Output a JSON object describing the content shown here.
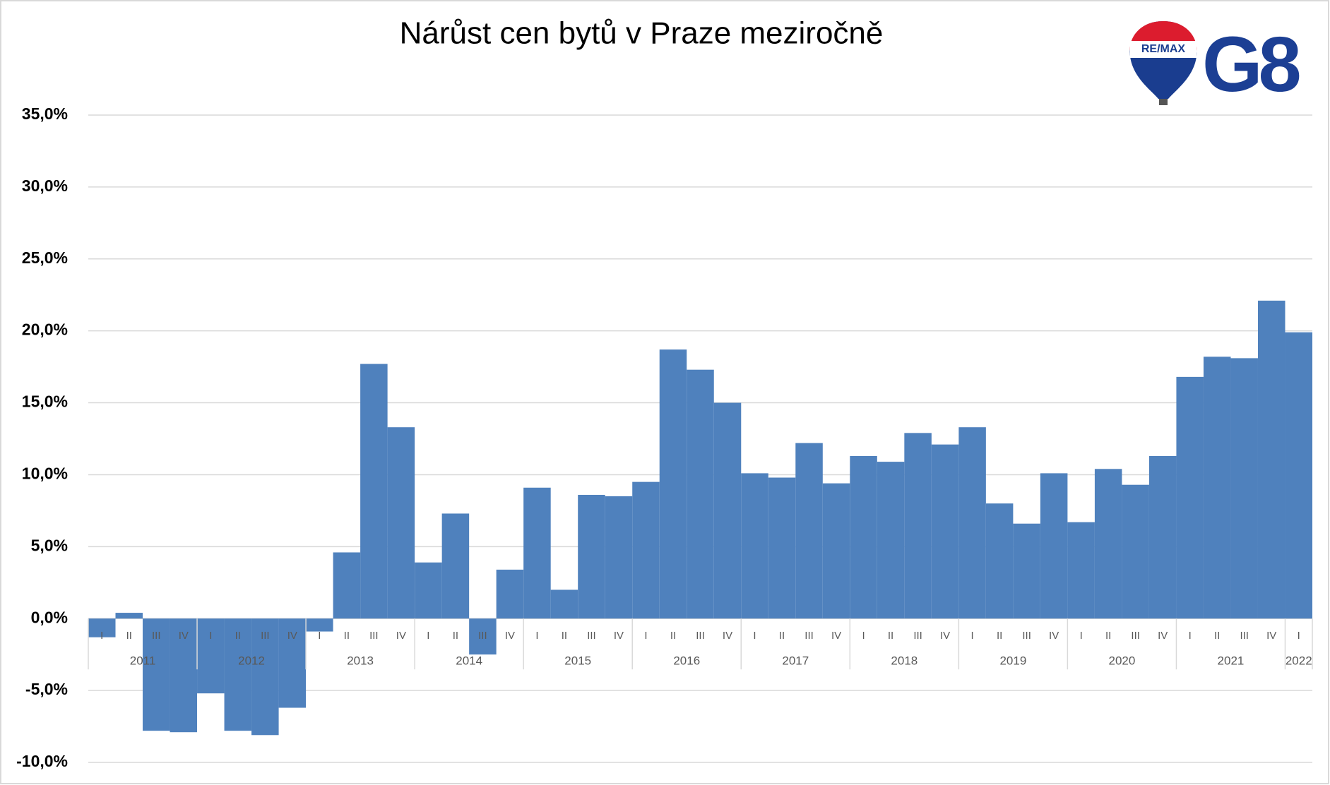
{
  "logo": {
    "balloon_text": "RE/MAX",
    "mark": "G8"
  },
  "chart_data": {
    "type": "bar",
    "title": "Nárůst cen bytů v Praze meziročně",
    "color": "#4f81bd",
    "grid": true,
    "ylim": [
      -10,
      35
    ],
    "yticks": [
      {
        "value": -10,
        "label": "-10,0%"
      },
      {
        "value": -5,
        "label": "-5,0%"
      },
      {
        "value": 0,
        "label": "0,0%"
      },
      {
        "value": 5,
        "label": "5,0%"
      },
      {
        "value": 10,
        "label": "10,0%"
      },
      {
        "value": 15,
        "label": "15,0%"
      },
      {
        "value": 20,
        "label": "20,0%"
      },
      {
        "value": 25,
        "label": "25,0%"
      },
      {
        "value": 30,
        "label": "30,0%"
      },
      {
        "value": 35,
        "label": "35,0%"
      }
    ],
    "groups": [
      {
        "label": "2011",
        "categories": [
          "I",
          "II",
          "III",
          "IV"
        ],
        "values": [
          -1.3,
          0.4,
          -7.8,
          -7.9
        ]
      },
      {
        "label": "2012",
        "categories": [
          "I",
          "II",
          "III",
          "IV"
        ],
        "values": [
          -5.2,
          -7.8,
          -8.1,
          -6.2
        ]
      },
      {
        "label": "2013",
        "categories": [
          "I",
          "II",
          "III",
          "IV"
        ],
        "values": [
          -0.9,
          4.6,
          17.7,
          13.3
        ]
      },
      {
        "label": "2014",
        "categories": [
          "I",
          "II",
          "III",
          "IV"
        ],
        "values": [
          3.9,
          7.3,
          -2.5,
          3.4
        ]
      },
      {
        "label": "2015",
        "categories": [
          "I",
          "II",
          "III",
          "IV"
        ],
        "values": [
          9.1,
          2.0,
          8.6,
          8.5
        ]
      },
      {
        "label": "2016",
        "categories": [
          "I",
          "II",
          "III",
          "IV"
        ],
        "values": [
          9.5,
          18.7,
          17.3,
          15.0
        ]
      },
      {
        "label": "2017",
        "categories": [
          "I",
          "II",
          "III",
          "IV"
        ],
        "values": [
          10.1,
          9.8,
          12.2,
          9.4
        ]
      },
      {
        "label": "2018",
        "categories": [
          "I",
          "II",
          "III",
          "IV"
        ],
        "values": [
          11.3,
          10.9,
          12.9,
          12.1
        ]
      },
      {
        "label": "2019",
        "categories": [
          "I",
          "II",
          "III",
          "IV"
        ],
        "values": [
          13.3,
          8.0,
          6.6,
          10.1
        ]
      },
      {
        "label": "2020",
        "categories": [
          "I",
          "II",
          "III",
          "IV"
        ],
        "values": [
          6.7,
          10.4,
          9.3,
          11.3
        ]
      },
      {
        "label": "2021",
        "categories": [
          "I",
          "II",
          "III",
          "IV"
        ],
        "values": [
          16.8,
          18.2,
          18.1,
          22.1
        ]
      },
      {
        "label": "2022",
        "categories": [
          "I"
        ],
        "values": [
          19.9
        ]
      }
    ]
  }
}
